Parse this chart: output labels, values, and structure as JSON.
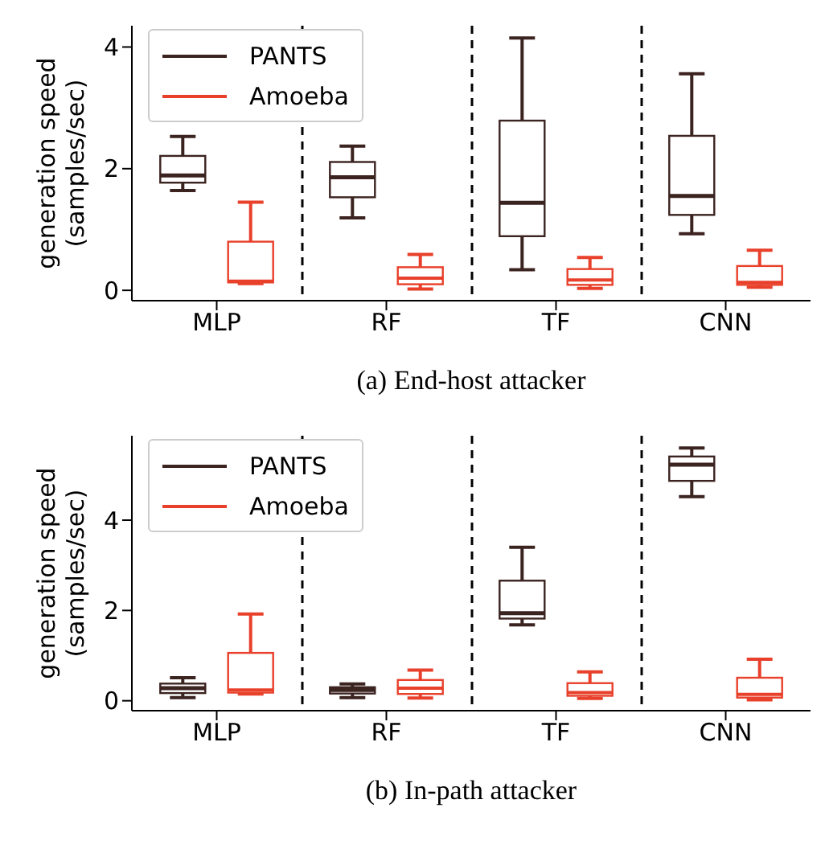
{
  "chart_data": [
    {
      "type": "box",
      "categories": [
        "MLP",
        "RF",
        "TF",
        "CNN"
      ],
      "ylabel": "generation speed\n(samples/sec)",
      "ylim": [
        -0.17,
        4.35
      ],
      "yticks": [
        0,
        2,
        4
      ],
      "legend": "top left",
      "annotations": [
        "(a) End-host attacker"
      ],
      "series": [
        {
          "name": "PANTS",
          "color": "#3b2320",
          "boxes": [
            {
              "low": 1.64,
              "q1": 1.77,
              "median": 1.89,
              "q3": 2.21,
              "high": 2.53
            },
            {
              "low": 1.19,
              "q1": 1.53,
              "median": 1.86,
              "q3": 2.11,
              "high": 2.37
            },
            {
              "low": 0.34,
              "q1": 0.89,
              "median": 1.44,
              "q3": 2.79,
              "high": 4.15
            },
            {
              "low": 0.93,
              "q1": 1.24,
              "median": 1.55,
              "q3": 2.54,
              "high": 3.56
            }
          ]
        },
        {
          "name": "Amoeba",
          "color": "#e8402a",
          "boxes": [
            {
              "low": 0.11,
              "q1": 0.13,
              "median": 0.15,
              "q3": 0.8,
              "high": 1.45
            },
            {
              "low": 0.02,
              "q1": 0.1,
              "median": 0.2,
              "q3": 0.38,
              "high": 0.59
            },
            {
              "low": 0.03,
              "q1": 0.09,
              "median": 0.17,
              "q3": 0.35,
              "high": 0.54
            },
            {
              "low": 0.05,
              "q1": 0.09,
              "median": 0.13,
              "q3": 0.4,
              "high": 0.66
            }
          ]
        }
      ]
    },
    {
      "type": "box",
      "categories": [
        "MLP",
        "RF",
        "TF",
        "CNN"
      ],
      "ylabel": "generation speed\n(samples/sec)",
      "ylim": [
        -0.22,
        5.87
      ],
      "yticks": [
        0,
        2,
        4
      ],
      "legend": "top left",
      "annotations": [
        "(b) In-path attacker"
      ],
      "series": [
        {
          "name": "PANTS",
          "color": "#3b2320",
          "boxes": [
            {
              "low": 0.07,
              "q1": 0.17,
              "median": 0.28,
              "q3": 0.38,
              "high": 0.51
            },
            {
              "low": 0.07,
              "q1": 0.16,
              "median": 0.24,
              "q3": 0.3,
              "high": 0.37
            },
            {
              "low": 1.68,
              "q1": 1.82,
              "median": 1.94,
              "q3": 2.66,
              "high": 3.4
            },
            {
              "low": 4.52,
              "q1": 4.87,
              "median": 5.23,
              "q3": 5.41,
              "high": 5.6
            }
          ]
        },
        {
          "name": "Amoeba",
          "color": "#e8402a",
          "boxes": [
            {
              "low": 0.15,
              "q1": 0.18,
              "median": 0.24,
              "q3": 1.06,
              "high": 1.92
            },
            {
              "low": 0.06,
              "q1": 0.15,
              "median": 0.28,
              "q3": 0.46,
              "high": 0.68
            },
            {
              "low": 0.05,
              "q1": 0.11,
              "median": 0.18,
              "q3": 0.39,
              "high": 0.64
            },
            {
              "low": 0.02,
              "q1": 0.07,
              "median": 0.14,
              "q3": 0.51,
              "high": 0.92
            }
          ]
        }
      ]
    }
  ]
}
